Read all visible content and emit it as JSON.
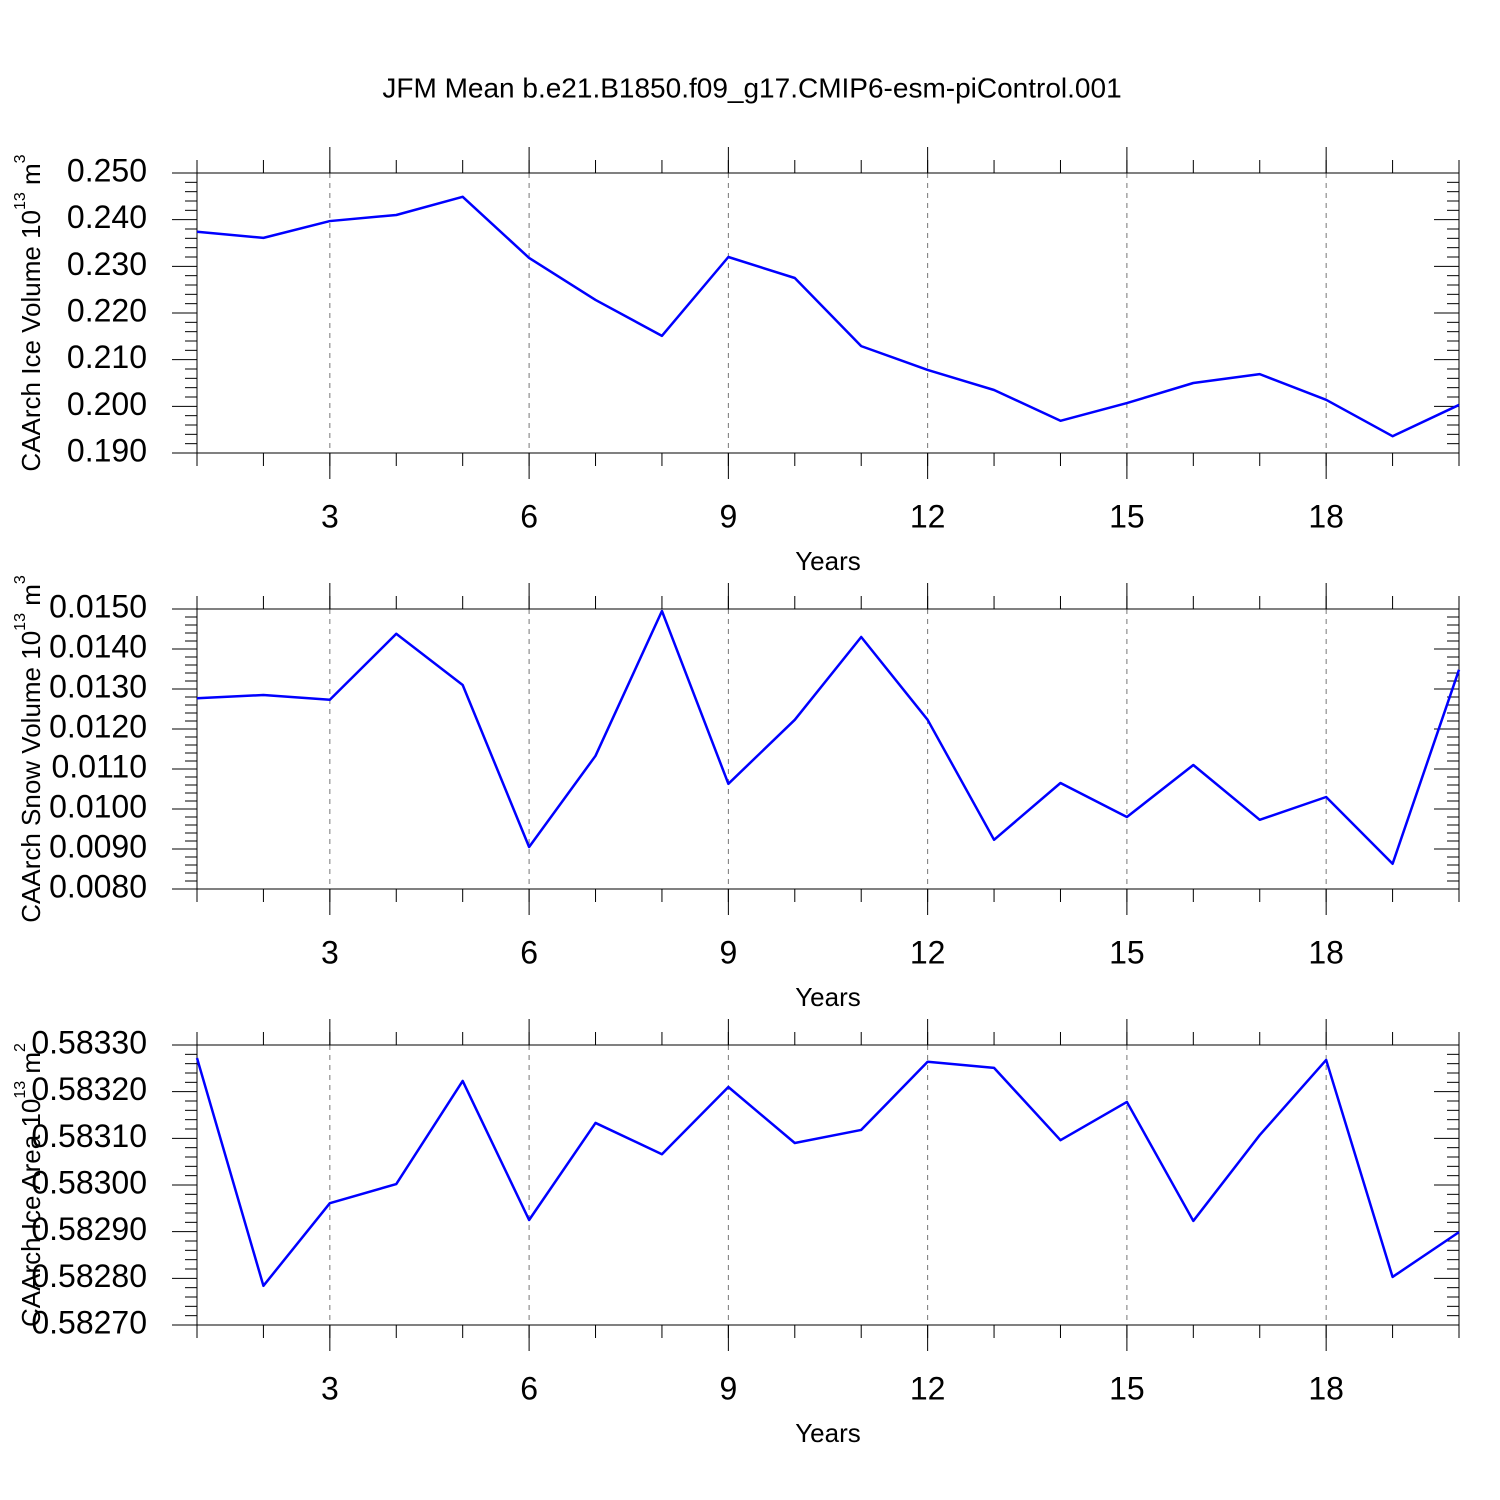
{
  "title": "JFM Mean b.e21.B1850.f09_g17.CMIP6-esm-piControl.001",
  "chart_data": [
    {
      "type": "line",
      "xlabel": "Years",
      "ylabel": {
        "text": "CAArch Ice Volume 10",
        "exp": "13",
        "unit": " m",
        "unit_exp": "3"
      },
      "x": [
        1,
        2,
        3,
        4,
        5,
        6,
        7,
        8,
        9,
        10,
        11,
        12,
        13,
        14,
        15,
        16,
        17,
        18,
        19,
        20
      ],
      "series": [
        {
          "color": "#0000ff",
          "values": [
            0.2374,
            0.2361,
            0.2397,
            0.241,
            0.2449,
            0.2318,
            0.2228,
            0.2151,
            0.232,
            0.2275,
            0.2129,
            0.2078,
            0.2035,
            0.1969,
            0.2007,
            0.205,
            0.2069,
            0.2014,
            0.1936,
            0.2003
          ]
        }
      ],
      "xlim": [
        1,
        20
      ],
      "xticks": [
        3,
        6,
        9,
        12,
        15,
        18
      ],
      "ylim": [
        0.19,
        0.25
      ],
      "yticks": [
        {
          "value": 0.19,
          "label": "0.190"
        },
        {
          "value": 0.2,
          "label": "0.200"
        },
        {
          "value": 0.21,
          "label": "0.210"
        },
        {
          "value": 0.22,
          "label": "0.220"
        },
        {
          "value": 0.23,
          "label": "0.230"
        },
        {
          "value": 0.24,
          "label": "0.240"
        },
        {
          "value": 0.25,
          "label": "0.250"
        }
      ],
      "x_grid": true
    },
    {
      "type": "line",
      "xlabel": "Years",
      "ylabel": {
        "text": "CAArch Snow Volume 10",
        "exp": "13",
        "unit": " m",
        "unit_exp": "3"
      },
      "x": [
        1,
        2,
        3,
        4,
        5,
        6,
        7,
        8,
        9,
        10,
        11,
        12,
        13,
        14,
        15,
        16,
        17,
        18,
        19,
        20
      ],
      "series": [
        {
          "color": "#0000ff",
          "values": [
            0.01277,
            0.01285,
            0.01273,
            0.01438,
            0.0131,
            0.00905,
            0.01133,
            0.01495,
            0.01063,
            0.01223,
            0.0143,
            0.01223,
            0.00923,
            0.01065,
            0.0098,
            0.0111,
            0.00973,
            0.0103,
            0.00863,
            0.01348
          ]
        }
      ],
      "xlim": [
        1,
        20
      ],
      "xticks": [
        3,
        6,
        9,
        12,
        15,
        18
      ],
      "ylim": [
        0.008,
        0.015
      ],
      "yticks": [
        {
          "value": 0.008,
          "label": "0.0080"
        },
        {
          "value": 0.009,
          "label": "0.0090"
        },
        {
          "value": 0.01,
          "label": "0.0100"
        },
        {
          "value": 0.011,
          "label": "0.0110"
        },
        {
          "value": 0.012,
          "label": "0.0120"
        },
        {
          "value": 0.013,
          "label": "0.0130"
        },
        {
          "value": 0.014,
          "label": "0.0140"
        },
        {
          "value": 0.015,
          "label": "0.0150"
        }
      ],
      "x_grid": true
    },
    {
      "type": "line",
      "xlabel": "Years",
      "ylabel": {
        "text": "CAArch Ice Area 10",
        "exp": "13",
        "unit": " m",
        "unit_exp": "2"
      },
      "x": [
        1,
        2,
        3,
        4,
        5,
        6,
        7,
        8,
        9,
        10,
        11,
        12,
        13,
        14,
        15,
        16,
        17,
        18,
        19,
        20
      ],
      "series": [
        {
          "color": "#0000ff",
          "values": [
            0.583272,
            0.582784,
            0.582961,
            0.583002,
            0.583223,
            0.582925,
            0.583133,
            0.583066,
            0.58321,
            0.58309,
            0.583118,
            0.583264,
            0.583251,
            0.583096,
            0.583178,
            0.582923,
            0.583107,
            0.583268,
            0.582803,
            0.582899
          ]
        }
      ],
      "xlim": [
        1,
        20
      ],
      "xticks": [
        3,
        6,
        9,
        12,
        15,
        18
      ],
      "ylim": [
        0.5827,
        0.5833
      ],
      "yticks": [
        {
          "value": 0.5827,
          "label": "0.58270"
        },
        {
          "value": 0.5828,
          "label": "0.58280"
        },
        {
          "value": 0.5829,
          "label": "0.58290"
        },
        {
          "value": 0.583,
          "label": "0.58300"
        },
        {
          "value": 0.5831,
          "label": "0.58310"
        },
        {
          "value": 0.5832,
          "label": "0.58320"
        },
        {
          "value": 0.5833,
          "label": "0.58330"
        }
      ],
      "x_grid": true
    }
  ]
}
